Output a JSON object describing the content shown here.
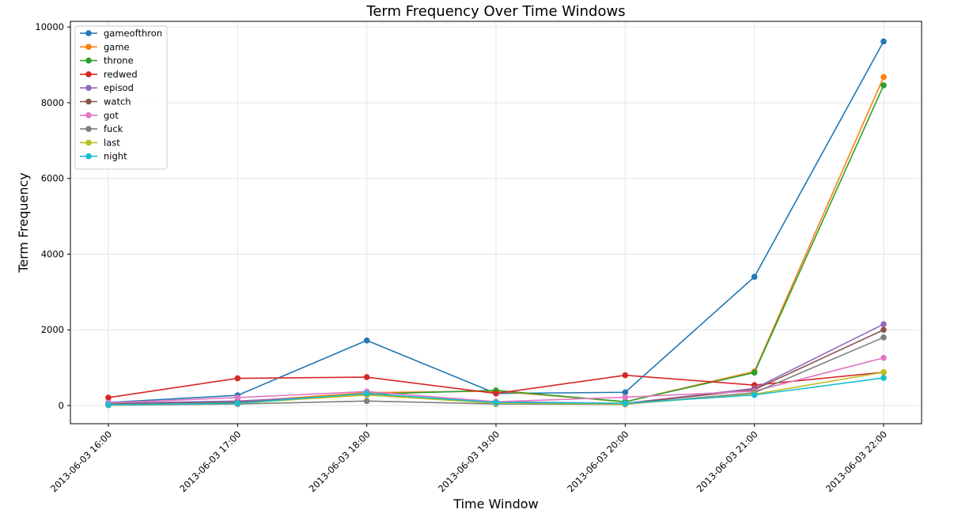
{
  "chart_data": {
    "type": "line",
    "title": "Term Frequency Over Time Windows",
    "xlabel": "Time Window",
    "ylabel": "Term Frequency",
    "categories": [
      "2013-06-03 16:00",
      "2013-06-03 17:00",
      "2013-06-03 18:00",
      "2013-06-03 19:00",
      "2013-06-03 20:00",
      "2013-06-03 21:00",
      "2013-06-03 22:00"
    ],
    "ylim": [
      -480,
      10150
    ],
    "yticks": [
      0,
      2000,
      4000,
      6000,
      8000,
      10000
    ],
    "grid": true,
    "legend_position": "upper-left",
    "series": [
      {
        "name": "gameofthron",
        "color": "#1f77b4",
        "values": [
          80,
          270,
          1720,
          320,
          350,
          3400,
          9620
        ]
      },
      {
        "name": "game",
        "color": "#ff7f0e",
        "values": [
          30,
          100,
          340,
          380,
          100,
          900,
          8680
        ]
      },
      {
        "name": "throne",
        "color": "#2ca02c",
        "values": [
          30,
          100,
          300,
          400,
          100,
          870,
          8460
        ]
      },
      {
        "name": "redwed",
        "color": "#d62728",
        "values": [
          210,
          720,
          750,
          320,
          800,
          540,
          880
        ]
      },
      {
        "name": "episod",
        "color": "#9467bd",
        "values": [
          60,
          120,
          280,
          100,
          60,
          450,
          2150
        ]
      },
      {
        "name": "watch",
        "color": "#8c564b",
        "values": [
          40,
          80,
          280,
          80,
          50,
          420,
          2000
        ]
      },
      {
        "name": "got",
        "color": "#e377c2",
        "values": [
          70,
          210,
          370,
          100,
          220,
          380,
          1260
        ]
      },
      {
        "name": "fuck",
        "color": "#7f7f7f",
        "values": [
          10,
          40,
          120,
          40,
          30,
          340,
          1800
        ]
      },
      {
        "name": "last",
        "color": "#bcbd22",
        "values": [
          20,
          60,
          280,
          60,
          40,
          300,
          880
        ]
      },
      {
        "name": "night",
        "color": "#17becf",
        "values": [
          20,
          60,
          320,
          80,
          60,
          280,
          730
        ]
      }
    ]
  }
}
